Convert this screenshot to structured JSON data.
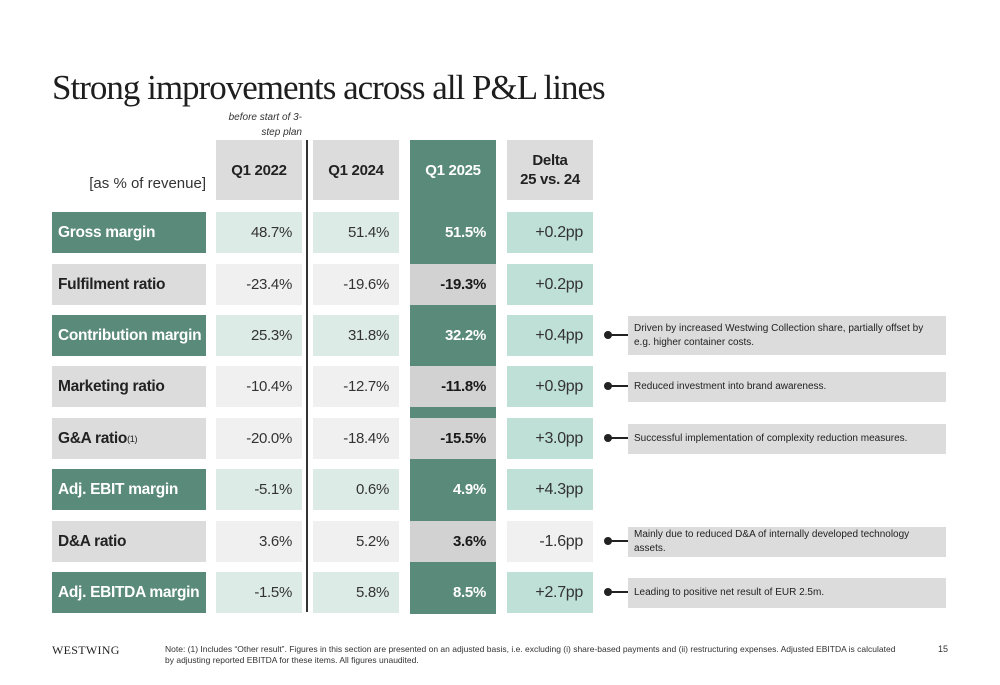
{
  "title": "Strong improvements across all P&L lines",
  "before_note": "before start of 3-step plan",
  "unit_label": "[as % of revenue]",
  "columns": {
    "q1_2022": "Q1 2022",
    "q1_2024": "Q1 2024",
    "q1_2025": "Q1 2025",
    "delta_line1": "Delta",
    "delta_line2": "25 vs. 24"
  },
  "colors": {
    "accent_green": "#5a8a79",
    "light_green": "#ddebe6",
    "delta_green": "#bfe0d7",
    "grey": "#dcdcdc"
  },
  "rows": [
    {
      "label": "Gross margin",
      "sup": "",
      "style": "green",
      "q1_2022": "48.7%",
      "q1_2024": "51.4%",
      "q1_2025": "51.5%",
      "delta": "+0.2pp",
      "delta_type": "pos",
      "comment": ""
    },
    {
      "label": "Fulfilment ratio",
      "sup": "",
      "style": "grey",
      "q1_2022": "-23.4%",
      "q1_2024": "-19.6%",
      "q1_2025": "-19.3%",
      "delta": "+0.2pp",
      "delta_type": "pos",
      "comment": ""
    },
    {
      "label": "Contribution margin",
      "sup": "",
      "style": "green",
      "q1_2022": "25.3%",
      "q1_2024": "31.8%",
      "q1_2025": "32.2%",
      "delta": "+0.4pp",
      "delta_type": "pos",
      "comment": "Driven by increased Westwing Collection share, partially offset by e.g. higher container costs."
    },
    {
      "label": "Marketing ratio",
      "sup": "",
      "style": "grey",
      "q1_2022": "-10.4%",
      "q1_2024": "-12.7%",
      "q1_2025": "-11.8%",
      "delta": "+0.9pp",
      "delta_type": "pos",
      "comment": "Reduced investment into brand awareness."
    },
    {
      "label": "G&A ratio",
      "sup": "(1)",
      "style": "grey",
      "q1_2022": "-20.0%",
      "q1_2024": "-18.4%",
      "q1_2025": "-15.5%",
      "delta": "+3.0pp",
      "delta_type": "pos",
      "comment": "Successful implementation of complexity reduction measures."
    },
    {
      "label": "Adj. EBIT margin",
      "sup": "",
      "style": "green",
      "q1_2022": "-5.1%",
      "q1_2024": "0.6%",
      "q1_2025": "4.9%",
      "delta": "+4.3pp",
      "delta_type": "pos",
      "comment": ""
    },
    {
      "label": "D&A ratio",
      "sup": "",
      "style": "grey",
      "q1_2022": "3.6%",
      "q1_2024": "5.2%",
      "q1_2025": "3.6%",
      "delta": "-1.6pp",
      "delta_type": "neg",
      "comment": "Mainly due to reduced D&A of internally developed technology assets."
    },
    {
      "label": "Adj. EBITDA margin",
      "sup": "",
      "style": "green",
      "q1_2022": "-1.5%",
      "q1_2024": "5.8%",
      "q1_2025": "8.5%",
      "delta": "+2.7pp",
      "delta_type": "pos",
      "comment": "Leading to positive net result of EUR 2.5m."
    }
  ],
  "footer": {
    "logo": "WESTWING",
    "note": "Note: (1) Includes “Other result”. Figures in this section are presented on an adjusted basis, i.e. excluding (i) share-based payments and (ii) restructuring expenses. Adjusted EBITDA is calculated by adjusting reported EBITDA for these items. All figures unaudited.",
    "page_number": "15"
  }
}
